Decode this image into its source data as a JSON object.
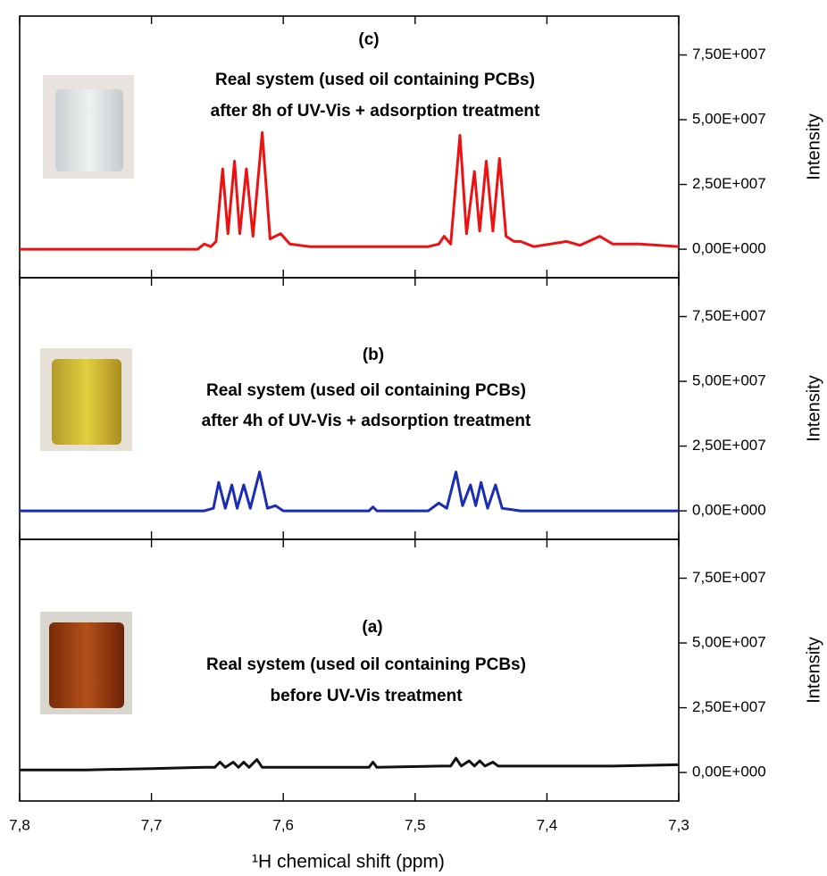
{
  "chart_data": [
    {
      "type": "line",
      "annotations": [
        "(c)",
        "Real system (used oil containing PCBs)",
        "after 8h of UV-Vis + adsorption treatment"
      ],
      "ylabel": "Intensity",
      "xlim": [
        7.8,
        7.3
      ],
      "ylim": [
        -11000000.0,
        90000000.0
      ],
      "yticks": [
        {
          "value": 0,
          "label": "0,00E+000"
        },
        {
          "value": 25000000.0,
          "label": "2,50E+007"
        },
        {
          "value": 50000000.0,
          "label": "5,00E+007"
        },
        {
          "value": 75000000.0,
          "label": "7,50E+007"
        }
      ],
      "color": "#ee1111",
      "x": [
        7.8,
        7.7,
        7.665,
        7.66,
        7.655,
        7.651,
        7.646,
        7.642,
        7.637,
        7.633,
        7.628,
        7.623,
        7.616,
        7.61,
        7.602,
        7.595,
        7.58,
        7.55,
        7.52,
        7.49,
        7.482,
        7.478,
        7.473,
        7.466,
        7.461,
        7.455,
        7.451,
        7.446,
        7.441,
        7.436,
        7.431,
        7.425,
        7.42,
        7.41,
        7.385,
        7.375,
        7.36,
        7.35,
        7.33,
        7.3
      ],
      "values": [
        0,
        0,
        0,
        2000000.0,
        1000000.0,
        3000000.0,
        31000000.0,
        6000000.0,
        34000000.0,
        6000000.0,
        31000000.0,
        5000000.0,
        45000000.0,
        4000000.0,
        6000000.0,
        2000000.0,
        1000000.0,
        1000000.0,
        1000000.0,
        1000000.0,
        2000000.0,
        5000000.0,
        2000000.0,
        44000000.0,
        6000000.0,
        30000000.0,
        7000000.0,
        34000000.0,
        7000000.0,
        35000000.0,
        5000000.0,
        3000000.0,
        3000000.0,
        1000000.0,
        3000000.0,
        1500000.0,
        5000000.0,
        2000000.0,
        2000000.0,
        1000000.0
      ]
    },
    {
      "type": "line",
      "annotations": [
        "(b)",
        "Real system (used oil containing PCBs)",
        "after 4h of UV-Vis + adsorption treatment"
      ],
      "ylabel": "Intensity",
      "xlim": [
        7.8,
        7.3
      ],
      "ylim": [
        -11000000.0,
        90000000.0
      ],
      "yticks": [
        {
          "value": 0,
          "label": "0,00E+000"
        },
        {
          "value": 25000000.0,
          "label": "2,50E+007"
        },
        {
          "value": 50000000.0,
          "label": "5,00E+007"
        },
        {
          "value": 75000000.0,
          "label": "7,50E+007"
        }
      ],
      "color": "#1a2db5",
      "x": [
        7.8,
        7.7,
        7.66,
        7.653,
        7.649,
        7.644,
        7.639,
        7.635,
        7.63,
        7.625,
        7.618,
        7.612,
        7.606,
        7.6,
        7.56,
        7.535,
        7.532,
        7.529,
        7.49,
        7.482,
        7.476,
        7.469,
        7.464,
        7.458,
        7.454,
        7.45,
        7.445,
        7.439,
        7.434,
        7.42,
        7.3
      ],
      "values": [
        0,
        0,
        0,
        1000000.0,
        11000000.0,
        1000000.0,
        10000000.0,
        1000000.0,
        10000000.0,
        1000000.0,
        15000000.0,
        1000000.0,
        2000000.0,
        0,
        0,
        0,
        1500000.0,
        0,
        0,
        3000000.0,
        1000000.0,
        15000000.0,
        2000000.0,
        10000000.0,
        2000000.0,
        11000000.0,
        1000000.0,
        10000000.0,
        1000000.0,
        0,
        0
      ]
    },
    {
      "type": "line",
      "annotations": [
        "(a)",
        "Real system (used oil containing PCBs)",
        "before UV-Vis treatment"
      ],
      "ylabel": "Intensity",
      "xlabel": "¹H chemical shift (ppm)",
      "xlim": [
        7.8,
        7.3
      ],
      "ylim": [
        -11000000.0,
        90000000.0
      ],
      "xticks": [
        {
          "value": 7.8,
          "label": "7,8"
        },
        {
          "value": 7.7,
          "label": "7,7"
        },
        {
          "value": 7.6,
          "label": "7,6"
        },
        {
          "value": 7.5,
          "label": "7,5"
        },
        {
          "value": 7.4,
          "label": "7,4"
        },
        {
          "value": 7.3,
          "label": "7,3"
        }
      ],
      "yticks": [
        {
          "value": 0,
          "label": "0,00E+000"
        },
        {
          "value": 25000000.0,
          "label": "2,50E+007"
        },
        {
          "value": 50000000.0,
          "label": "5,00E+007"
        },
        {
          "value": 75000000.0,
          "label": "7,50E+007"
        }
      ],
      "color": "#111111",
      "x": [
        7.8,
        7.75,
        7.7,
        7.66,
        7.652,
        7.648,
        7.644,
        7.638,
        7.634,
        7.63,
        7.626,
        7.62,
        7.616,
        7.6,
        7.55,
        7.535,
        7.532,
        7.529,
        7.48,
        7.473,
        7.469,
        7.465,
        7.459,
        7.455,
        7.451,
        7.447,
        7.441,
        7.437,
        7.4,
        7.35,
        7.3
      ],
      "values": [
        1000000.0,
        1000000.0,
        1500000.0,
        2000000.0,
        2000000.0,
        4000000.0,
        2000000.0,
        4000000.0,
        2000000.0,
        4000000.0,
        2000000.0,
        5000000.0,
        2000000.0,
        2000000.0,
        2000000.0,
        2000000.0,
        4000000.0,
        2000000.0,
        2500000.0,
        2500000.0,
        5500000.0,
        2500000.0,
        4500000.0,
        2500000.0,
        4500000.0,
        2500000.0,
        4000000.0,
        2500000.0,
        2500000.0,
        2500000.0,
        3000000.0
      ]
    }
  ]
}
